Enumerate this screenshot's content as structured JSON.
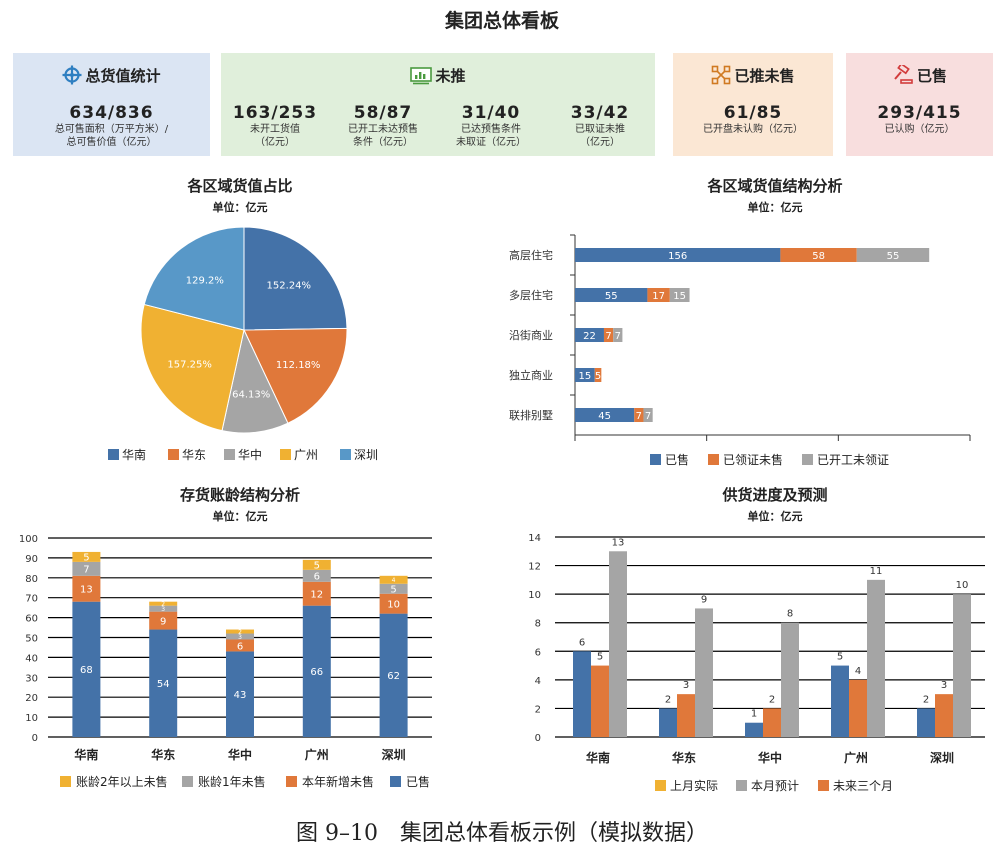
{
  "title": "集团总体看板",
  "caption": "图 9–10　集团总体看板示例（模拟数据）",
  "colors": {
    "blue": "#4472a8",
    "orange": "#e0783a",
    "gray": "#a5a5a5",
    "yellow": "#f0b132",
    "lightblue": "#5898c8"
  },
  "cards": {
    "total": {
      "title": "总货值统计",
      "value": "634/836",
      "label": "总可售面积（万平方米）/\n总可售价值（亿元）",
      "icon": "crosshair-icon"
    },
    "unlaunched": {
      "title": "未推",
      "icon": "monitor-chart-icon",
      "items": [
        {
          "value": "163/253",
          "label": "未开工货值\n（亿元）"
        },
        {
          "value": "58/87",
          "label": "已开工未达预售\n条件（亿元）"
        },
        {
          "value": "31/40",
          "label": "已达预售条件\n未取证（亿元）"
        },
        {
          "value": "33/42",
          "label": "已取证未推\n（亿元）"
        }
      ]
    },
    "launched_unsold": {
      "title": "已推未售",
      "value": "61/85",
      "label": "已开盘未认购（亿元）",
      "icon": "network-icon"
    },
    "sold": {
      "title": "已售",
      "value": "293/415",
      "label": "已认购（亿元）",
      "icon": "gavel-icon"
    }
  },
  "chart_data": [
    {
      "type": "pie",
      "title": "各区域货值占比",
      "unit": "单位：亿元",
      "slices": [
        {
          "name": "华南",
          "value": 152.24,
          "label": "152.24%",
          "color": "#4472a8"
        },
        {
          "name": "华东",
          "value": 112.18,
          "label": "112.18%",
          "color": "#e0783a"
        },
        {
          "name": "华中",
          "value": 64.13,
          "label": "64.13%",
          "color": "#a5a5a5"
        },
        {
          "name": "广州",
          "value": 157.25,
          "label": "157.25%",
          "color": "#f0b132"
        },
        {
          "name": "深圳",
          "value": 129.2,
          "label": "129.2%",
          "color": "#5898c8"
        }
      ],
      "legend": [
        "华南",
        "华东",
        "华中",
        "广州",
        "深圳"
      ]
    },
    {
      "type": "bar",
      "orientation": "horizontal",
      "stacked": true,
      "title": "各区域货值结构分析",
      "unit": "单位：亿元",
      "categories": [
        "高层住宅",
        "多层住宅",
        "沿街商业",
        "独立商业",
        "联排别墅"
      ],
      "series": [
        {
          "name": "已售",
          "values": [
            156,
            55,
            22,
            15,
            45
          ],
          "color": "#4472a8"
        },
        {
          "name": "已领证未售",
          "values": [
            58,
            17,
            7,
            5,
            7
          ],
          "color": "#e0783a"
        },
        {
          "name": "已开工未领证",
          "values": [
            55,
            15,
            7,
            0,
            7
          ],
          "color": "#a5a5a5"
        }
      ],
      "xlim": [
        0,
        300
      ]
    },
    {
      "type": "bar",
      "stacked": true,
      "title": "存货账龄结构分析",
      "unit": "单位：亿元",
      "categories": [
        "华南",
        "华东",
        "华中",
        "广州",
        "深圳"
      ],
      "series": [
        {
          "name": "已售",
          "values": [
            68,
            54,
            43,
            66,
            62
          ],
          "color": "#4472a8"
        },
        {
          "name": "本年新增未售",
          "values": [
            13,
            9,
            6,
            12,
            10
          ],
          "color": "#e0783a"
        },
        {
          "name": "账龄1年未售",
          "values": [
            7,
            3,
            3,
            6,
            5
          ],
          "color": "#a5a5a5"
        },
        {
          "name": "账龄2年以上未售",
          "values": [
            5,
            2,
            2,
            5,
            4
          ],
          "color": "#f0b132"
        }
      ],
      "legend": [
        "账龄2年以上未售",
        "账龄1年未售",
        "本年新增未售",
        "已售"
      ],
      "ylim": [
        0,
        100
      ],
      "yticks": [
        0,
        10,
        20,
        30,
        40,
        50,
        60,
        70,
        80,
        90,
        100
      ]
    },
    {
      "type": "bar",
      "title": "供货进度及预测",
      "unit": "单位：亿元",
      "categories": [
        "华南",
        "华东",
        "华中",
        "广州",
        "深圳"
      ],
      "series": [
        {
          "name": "上月实际",
          "values": [
            6,
            2,
            1,
            5,
            2
          ],
          "color": "#4472a8"
        },
        {
          "name": "未来三个月",
          "values": [
            5,
            3,
            2,
            4,
            3
          ],
          "color": "#e0783a"
        },
        {
          "name": "本月预计",
          "values": [
            13,
            9,
            8,
            11,
            10
          ],
          "color": "#a5a5a5"
        }
      ],
      "legend": [
        {
          "name": "上月实际",
          "color": "#f0b132"
        },
        {
          "name": "本月预计",
          "color": "#a5a5a5"
        },
        {
          "name": "未来三个月",
          "color": "#e0783a"
        }
      ],
      "ylim": [
        0,
        14
      ],
      "yticks": [
        0,
        2,
        4,
        6,
        8,
        10,
        12,
        14
      ]
    }
  ]
}
